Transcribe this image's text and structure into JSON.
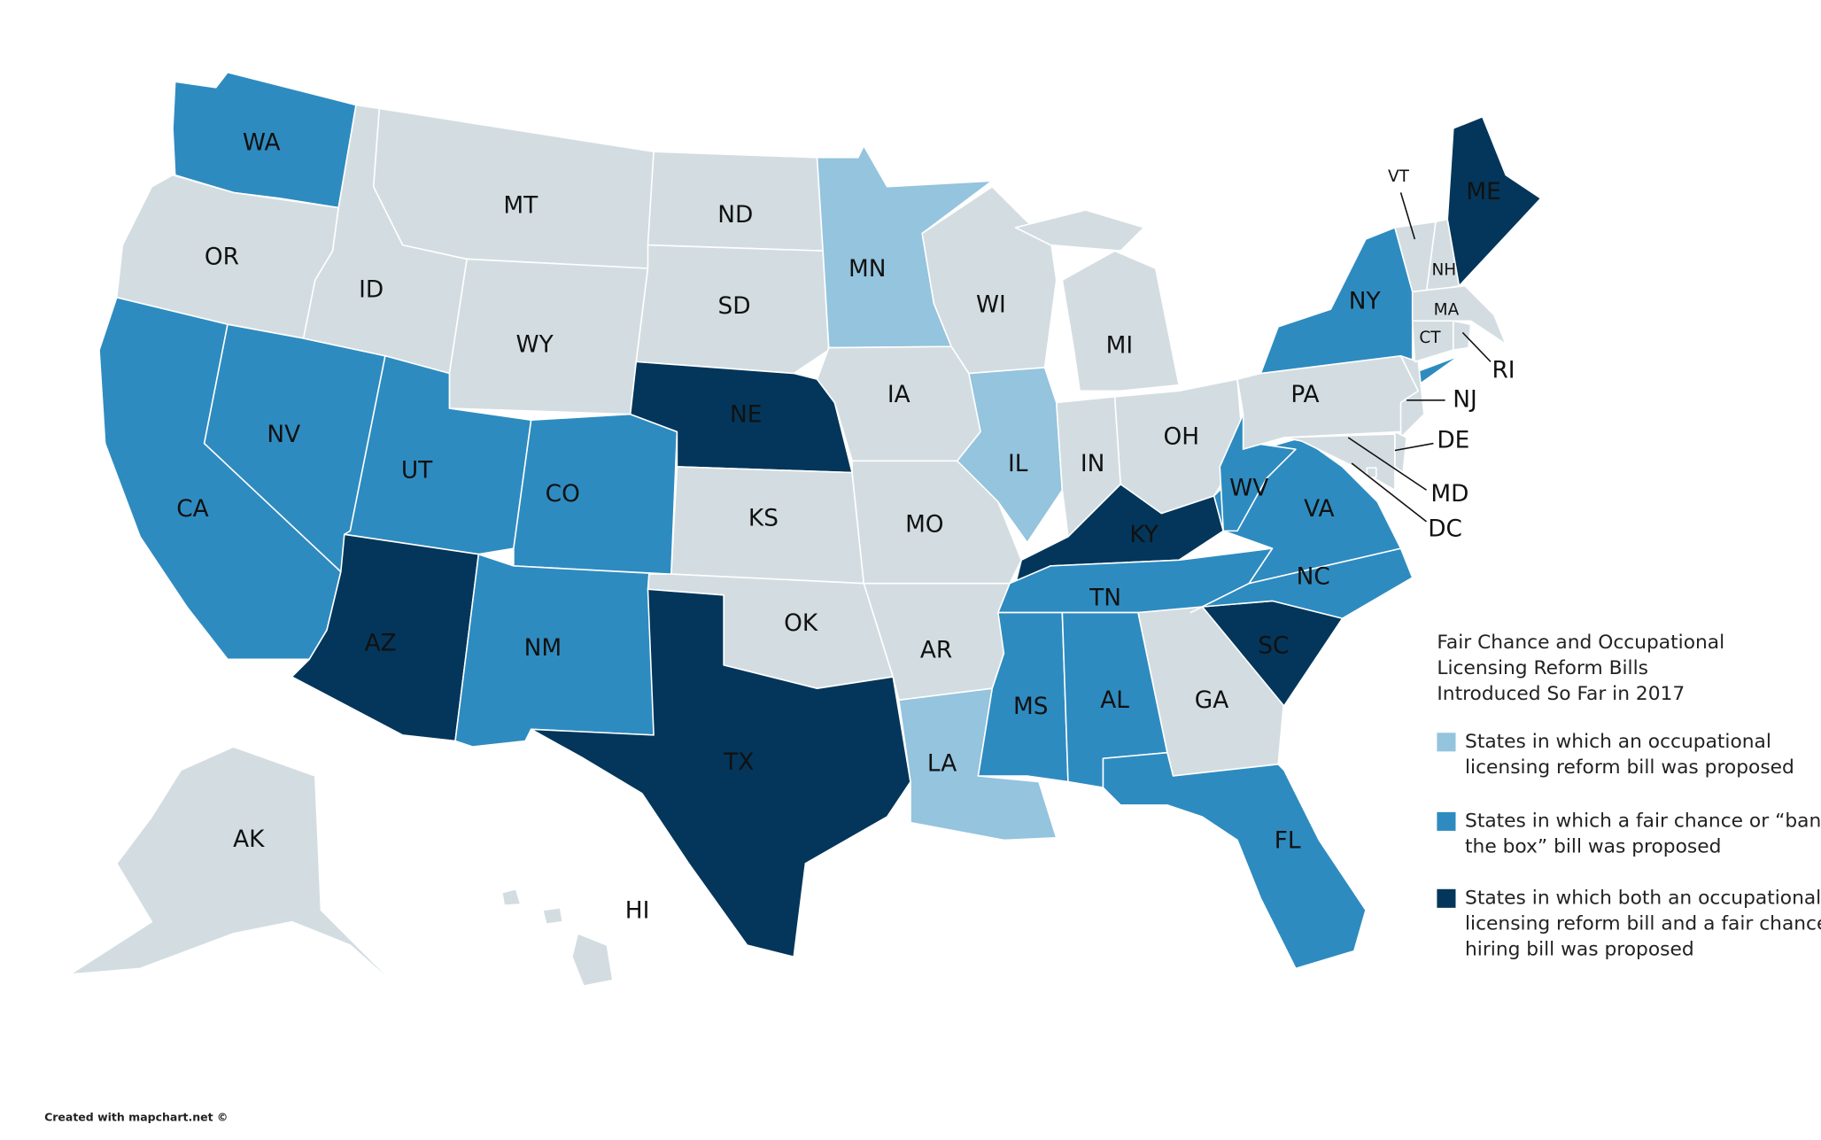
{
  "title": [
    "Fair Chance and Occupational",
    "Licensing Reform Bills",
    "Introduced So Far in 2017"
  ],
  "legend": [
    {
      "label": [
        "States in which an occupational",
        "licensing reform bill was proposed"
      ],
      "color": "#94c4de"
    },
    {
      "label": [
        "States in which a fair chance or “ban",
        "the box” bill was proposed"
      ],
      "color": "#2e8bc0"
    },
    {
      "label": [
        "States in which both an occupational",
        "licensing reform bill and a fair chance",
        "hiring bill was proposed"
      ],
      "color": "#03365a"
    }
  ],
  "states": [
    {
      "label": "WA",
      "color": "#2e8bc0"
    },
    {
      "label": "OR",
      "color": "#d3dde1"
    },
    {
      "label": "CA",
      "color": "#2e8bc0"
    },
    {
      "label": "NV",
      "color": "#2e8bc0"
    },
    {
      "label": "ID",
      "color": "#d3dde1"
    },
    {
      "label": "MT",
      "color": "#d3dde1"
    },
    {
      "label": "WY",
      "color": "#d3dde1"
    },
    {
      "label": "UT",
      "color": "#2e8bc0"
    },
    {
      "label": "CO",
      "color": "#2e8bc0"
    },
    {
      "label": "AZ",
      "color": "#03365a"
    },
    {
      "label": "NM",
      "color": "#2e8bc0"
    },
    {
      "label": "ND",
      "color": "#d3dde1"
    },
    {
      "label": "SD",
      "color": "#d3dde1"
    },
    {
      "label": "NE",
      "color": "#03365a"
    },
    {
      "label": "KS",
      "color": "#d3dde1"
    },
    {
      "label": "OK",
      "color": "#d3dde1"
    },
    {
      "label": "TX",
      "color": "#03365a"
    },
    {
      "label": "MN",
      "color": "#94c4de"
    },
    {
      "label": "IA",
      "color": "#d3dde1"
    },
    {
      "label": "MO",
      "color": "#d3dde1"
    },
    {
      "label": "AR",
      "color": "#d3dde1"
    },
    {
      "label": "LA",
      "color": "#94c4de"
    },
    {
      "label": "WI",
      "color": "#d3dde1"
    },
    {
      "label": "IL",
      "color": "#94c4de"
    },
    {
      "label": "MI",
      "color": "#d3dde1"
    },
    {
      "label": "IN",
      "color": "#d3dde1"
    },
    {
      "label": "OH",
      "color": "#d3dde1"
    },
    {
      "label": "KY",
      "color": "#03365a"
    },
    {
      "label": "TN",
      "color": "#2e8bc0"
    },
    {
      "label": "MS",
      "color": "#2e8bc0"
    },
    {
      "label": "AL",
      "color": "#2e8bc0"
    },
    {
      "label": "GA",
      "color": "#d3dde1"
    },
    {
      "label": "FL",
      "color": "#2e8bc0"
    },
    {
      "label": "SC",
      "color": "#03365a"
    },
    {
      "label": "NC",
      "color": "#2e8bc0"
    },
    {
      "label": "VA",
      "color": "#2e8bc0"
    },
    {
      "label": "WV",
      "color": "#2e8bc0"
    },
    {
      "label": "PA",
      "color": "#d3dde1"
    },
    {
      "label": "NY",
      "color": "#2e8bc0"
    },
    {
      "label": "NJ",
      "color": "#d3dde1"
    },
    {
      "label": "MD",
      "color": "#d3dde1"
    },
    {
      "label": "DE",
      "color": "#d3dde1"
    },
    {
      "label": "VT",
      "color": "#d3dde1"
    },
    {
      "label": "NH",
      "color": "#d3dde1"
    },
    {
      "label": "ME",
      "color": "#03365a"
    },
    {
      "label": "MA",
      "color": "#d3dde1"
    },
    {
      "label": "CT",
      "color": "#d3dde1"
    },
    {
      "label": "RI",
      "color": "#d3dde1"
    },
    {
      "label": "DC",
      "color": "#d3dde1"
    },
    {
      "label": "AK",
      "color": "#d3dde1"
    },
    {
      "label": "HI",
      "color": "#d3dde1"
    }
  ],
  "credit": "Created with mapchart.net ©"
}
